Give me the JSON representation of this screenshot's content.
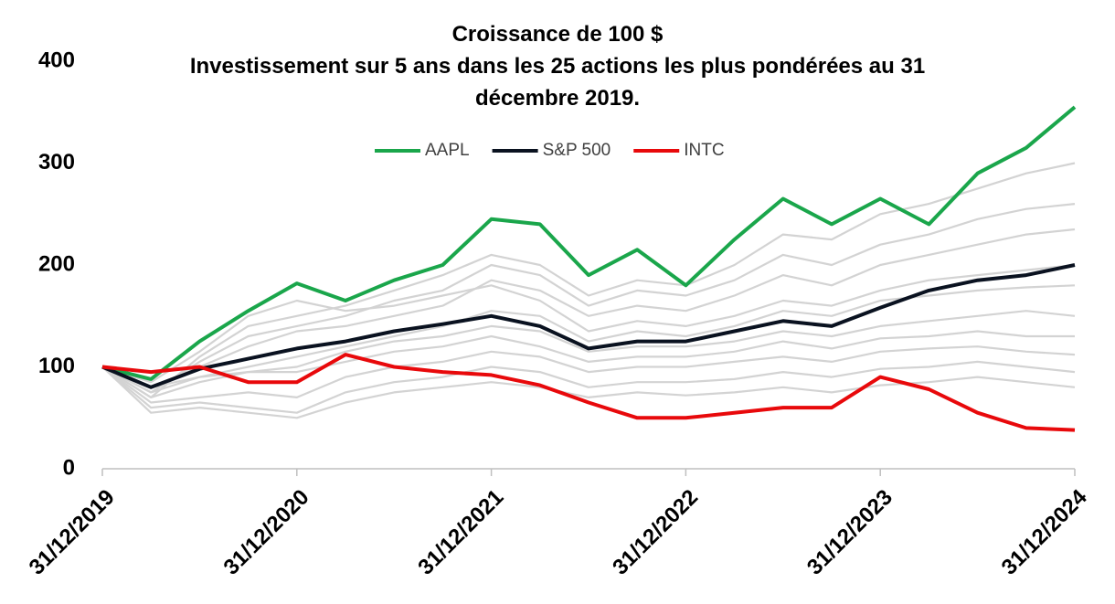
{
  "chart_data": {
    "type": "line",
    "title": "Croissance de 100 $",
    "subtitle": "Investissement sur 5 ans dans les 25 actions les plus pondérées au 31 décembre 2019.",
    "categories": [
      "31/12/2019",
      null,
      null,
      null,
      "31/12/2020",
      null,
      null,
      null,
      "31/12/2021",
      null,
      null,
      null,
      "31/12/2022",
      null,
      null,
      null,
      "31/12/2023",
      null,
      null,
      null,
      "31/12/2024"
    ],
    "ylim": [
      0,
      400
    ],
    "yticks": [
      0,
      100,
      200,
      300,
      400
    ],
    "grid": false,
    "legend": "top",
    "series": [
      {
        "color": "#d3d3d3",
        "values": [
          100,
          70,
          110,
          140,
          150,
          160,
          175,
          190,
          210,
          200,
          170,
          185,
          180,
          200,
          230,
          225,
          250,
          260,
          275,
          290,
          300
        ]
      },
      {
        "color": "#d3d3d3",
        "values": [
          100,
          75,
          105,
          130,
          140,
          150,
          165,
          175,
          200,
          190,
          160,
          175,
          170,
          185,
          210,
          200,
          220,
          230,
          245,
          255,
          260
        ]
      },
      {
        "color": "#d3d3d3",
        "values": [
          100,
          80,
          100,
          120,
          135,
          140,
          150,
          160,
          185,
          175,
          150,
          160,
          155,
          170,
          190,
          180,
          200,
          210,
          220,
          230,
          235
        ]
      },
      {
        "color": "#d3d3d3",
        "values": [
          100,
          85,
          115,
          150,
          165,
          155,
          160,
          170,
          180,
          165,
          135,
          145,
          140,
          150,
          165,
          160,
          175,
          185,
          190,
          195,
          200
        ]
      },
      {
        "color": "#d3d3d3",
        "values": [
          100,
          75,
          90,
          100,
          110,
          120,
          130,
          140,
          155,
          150,
          125,
          135,
          130,
          140,
          155,
          150,
          165,
          170,
          175,
          178,
          180
        ]
      },
      {
        "color": "#d3d3d3",
        "values": [
          100,
          70,
          85,
          95,
          100,
          115,
          125,
          130,
          140,
          135,
          115,
          120,
          120,
          125,
          135,
          130,
          140,
          145,
          150,
          155,
          150
        ]
      },
      {
        "color": "#d3d3d3",
        "values": [
          100,
          80,
          90,
          95,
          95,
          105,
          115,
          120,
          130,
          120,
          105,
          110,
          110,
          115,
          125,
          118,
          128,
          130,
          135,
          130,
          130
        ]
      },
      {
        "color": "#d3d3d3",
        "values": [
          100,
          65,
          70,
          75,
          70,
          90,
          100,
          105,
          115,
          110,
          95,
          100,
          100,
          105,
          110,
          105,
          115,
          118,
          120,
          115,
          112
        ]
      },
      {
        "color": "#d3d3d3",
        "values": [
          100,
          60,
          65,
          60,
          55,
          75,
          85,
          90,
          100,
          95,
          80,
          85,
          85,
          88,
          95,
          90,
          98,
          100,
          105,
          100,
          95
        ]
      },
      {
        "color": "#d3d3d3",
        "values": [
          100,
          55,
          60,
          55,
          50,
          65,
          75,
          80,
          85,
          80,
          70,
          75,
          72,
          75,
          80,
          75,
          82,
          85,
          90,
          85,
          80
        ]
      },
      {
        "name": "AAPL",
        "color": "#1aa64b",
        "values": [
          100,
          88,
          125,
          155,
          182,
          165,
          185,
          200,
          245,
          240,
          190,
          215,
          180,
          225,
          265,
          240,
          265,
          240,
          290,
          315,
          355
        ]
      },
      {
        "name": "S&P 500",
        "color": "#0a1220",
        "values": [
          100,
          80,
          98,
          108,
          118,
          125,
          135,
          142,
          150,
          140,
          118,
          125,
          125,
          135,
          145,
          140,
          158,
          175,
          185,
          190,
          200
        ]
      },
      {
        "name": "INTC",
        "color": "#e8090b",
        "values": [
          100,
          95,
          100,
          85,
          85,
          112,
          100,
          95,
          92,
          82,
          65,
          50,
          50,
          55,
          60,
          60,
          90,
          78,
          55,
          40,
          38
        ]
      }
    ]
  }
}
